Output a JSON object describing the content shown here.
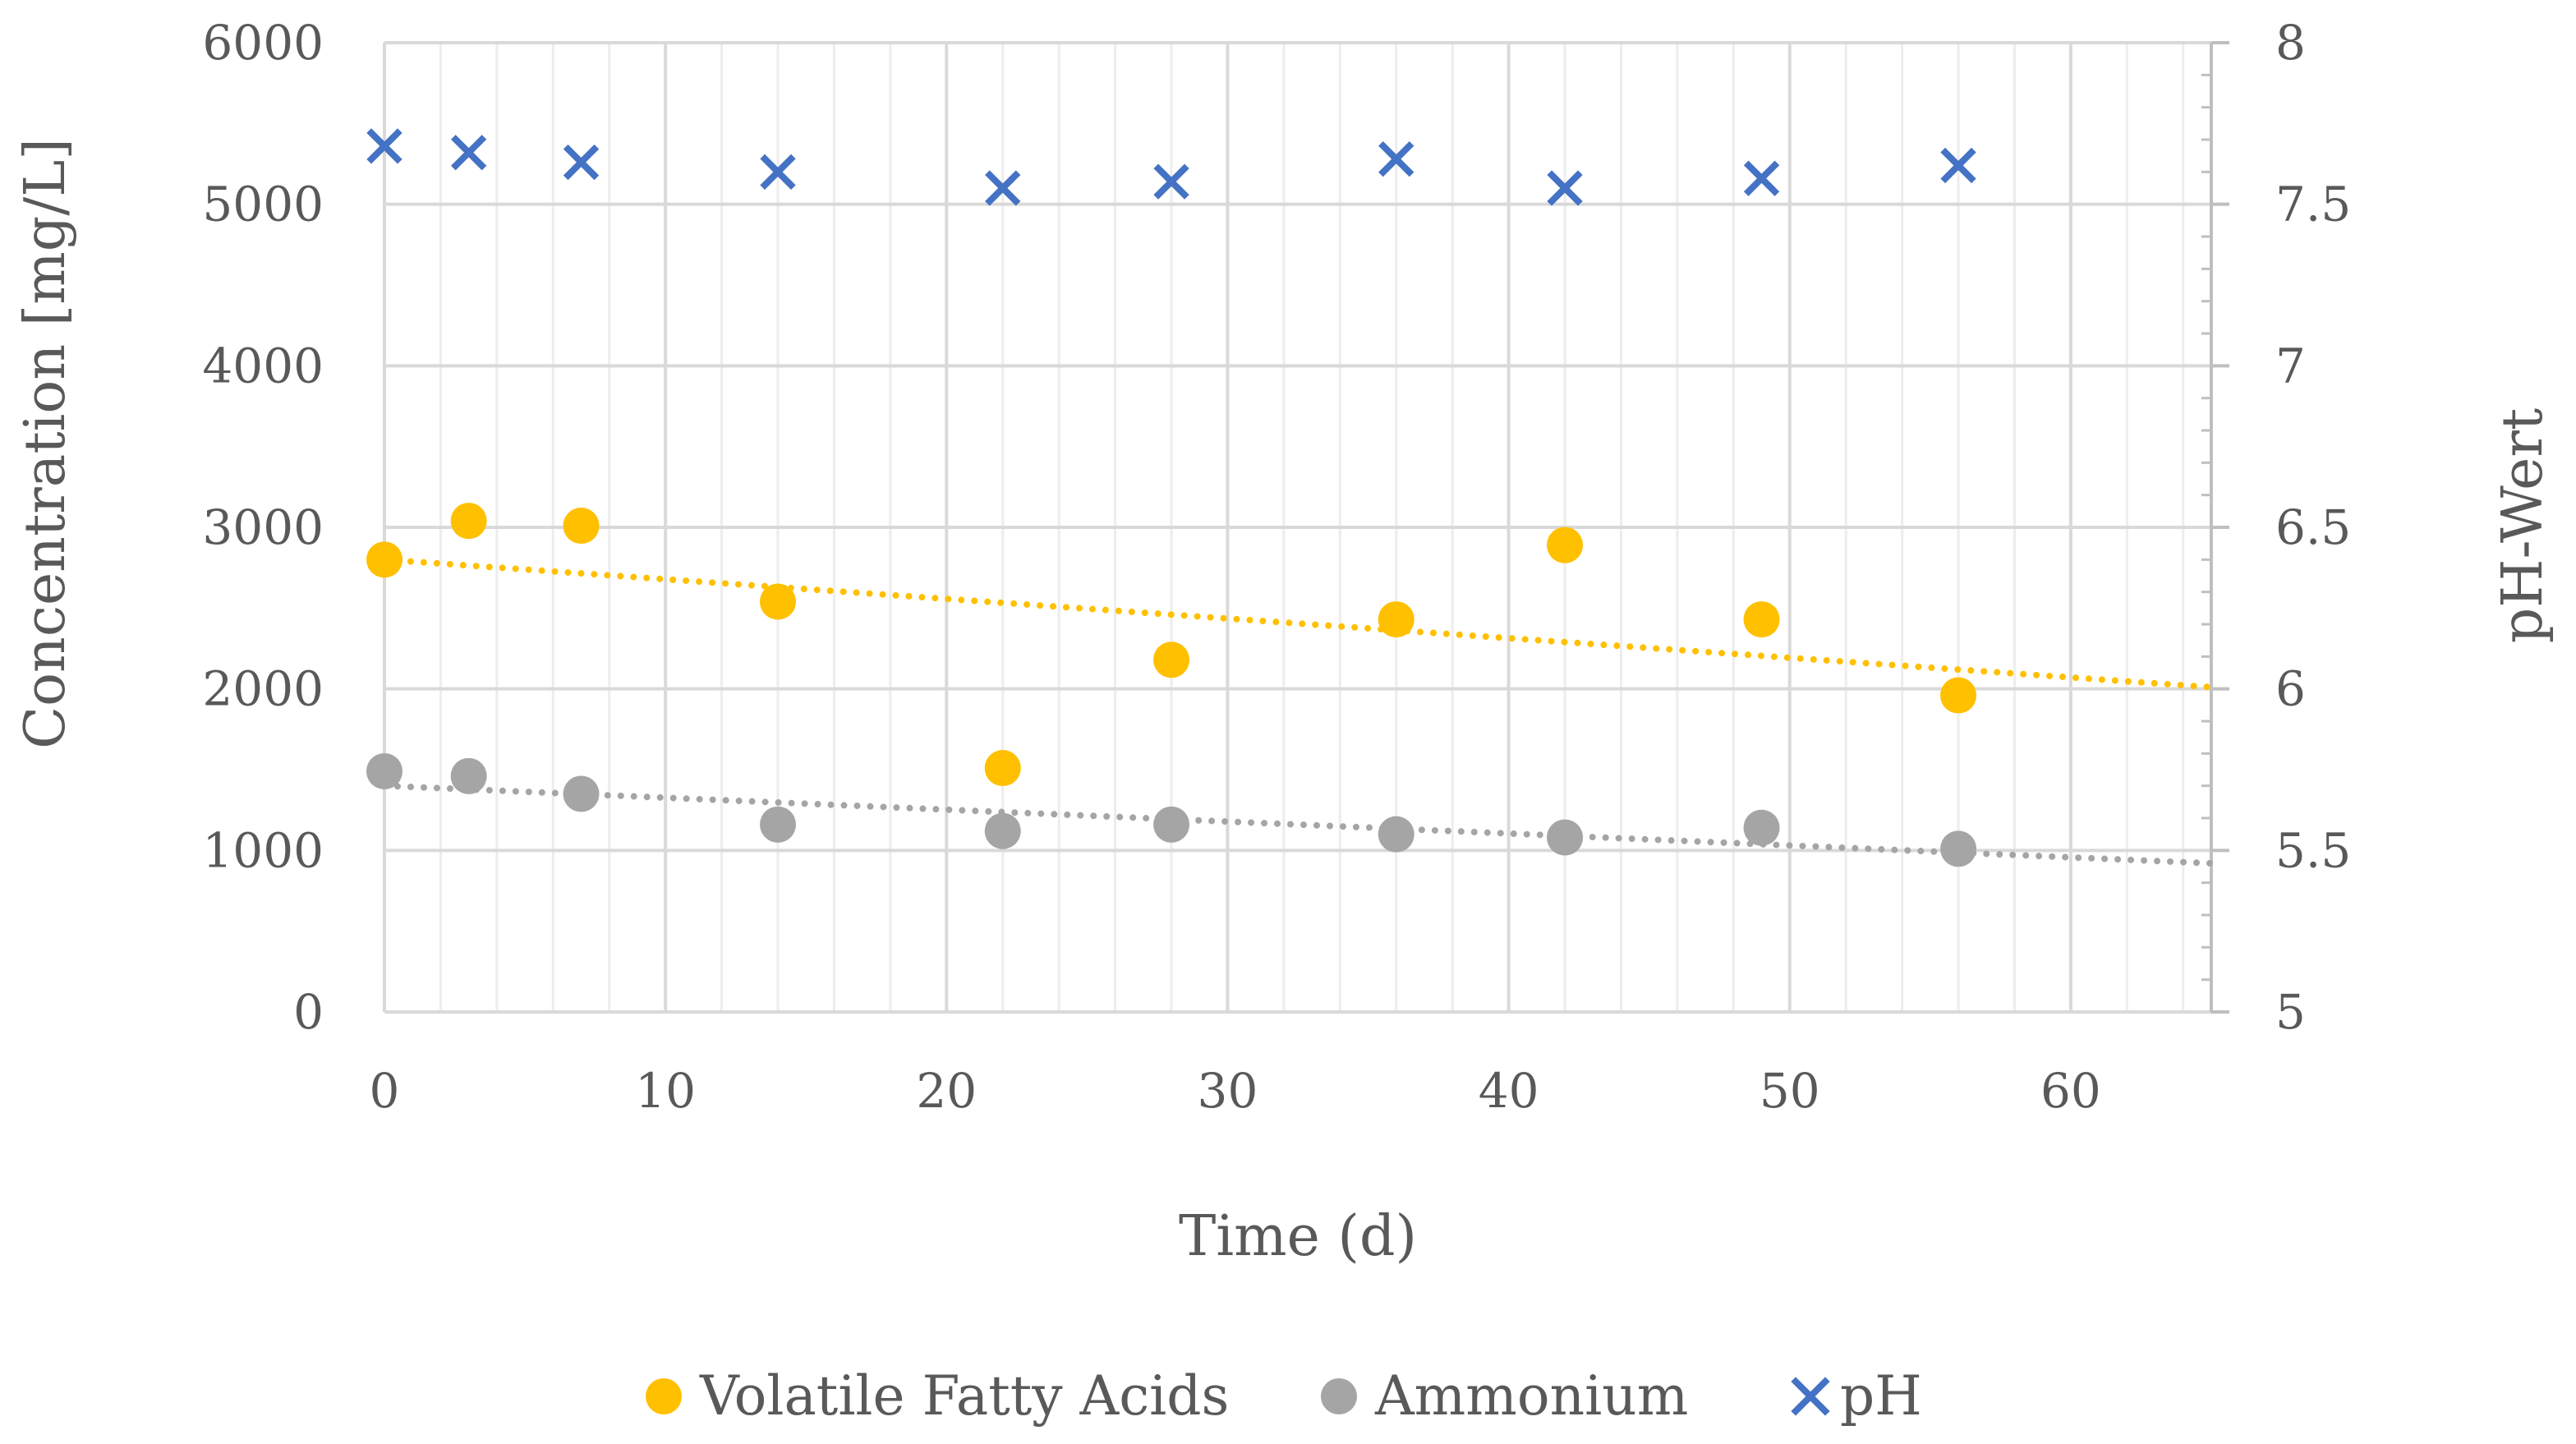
{
  "chart_data": {
    "type": "scatter",
    "title": "",
    "xlabel": "Time (d)",
    "ylabel": "Concentration [mg/L]",
    "y2label": "pH-Wert",
    "xlim": [
      0,
      65
    ],
    "ylim": [
      0,
      6000
    ],
    "y2lim": [
      5,
      8
    ],
    "x_ticks": [
      0,
      10,
      20,
      30,
      40,
      50,
      60
    ],
    "x_tick_labels": [
      "0",
      "10",
      "20",
      "30",
      "40",
      "50",
      "60"
    ],
    "y_ticks": [
      0,
      1000,
      2000,
      3000,
      4000,
      5000,
      6000
    ],
    "y_tick_labels": [
      "0",
      "1000",
      "2000",
      "3000",
      "4000",
      "5000",
      "6000"
    ],
    "y2_ticks": [
      5,
      5.5,
      6,
      6.5,
      7,
      7.5,
      8
    ],
    "y2_tick_labels": [
      "5",
      "5.5",
      "6",
      "6.5",
      "7",
      "7.5",
      "8"
    ],
    "grid": true,
    "legend_position": "bottom",
    "series": [
      {
        "name": "Volatile Fatty Acids",
        "axis": "left",
        "marker": "circle",
        "color": "#FFC000",
        "x": [
          0,
          3,
          7,
          14,
          22,
          28,
          36,
          42,
          49,
          56
        ],
        "y": [
          2800,
          3040,
          3010,
          2540,
          1510,
          2180,
          2430,
          2890,
          2430,
          1960
        ],
        "trendline": {
          "type": "linear",
          "x": [
            0,
            65
          ],
          "y": [
            2800,
            2010
          ],
          "color": "#FFC000"
        }
      },
      {
        "name": "Ammonium",
        "axis": "left",
        "marker": "circle",
        "color": "#A5A5A5",
        "x": [
          0,
          3,
          7,
          14,
          22,
          28,
          36,
          42,
          49,
          56
        ],
        "y": [
          1490,
          1460,
          1350,
          1160,
          1120,
          1160,
          1100,
          1080,
          1140,
          1010
        ],
        "trendline": {
          "type": "linear",
          "x": [
            0,
            65
          ],
          "y": [
            1400,
            920
          ],
          "color": "#A5A5A5"
        }
      },
      {
        "name": "pH",
        "axis": "right",
        "marker": "x",
        "color": "#4472C4",
        "x": [
          0,
          3,
          7,
          14,
          22,
          28,
          36,
          42,
          49,
          56
        ],
        "y": [
          7.68,
          7.66,
          7.63,
          7.6,
          7.55,
          7.57,
          7.64,
          7.55,
          7.58,
          7.62
        ]
      }
    ]
  }
}
